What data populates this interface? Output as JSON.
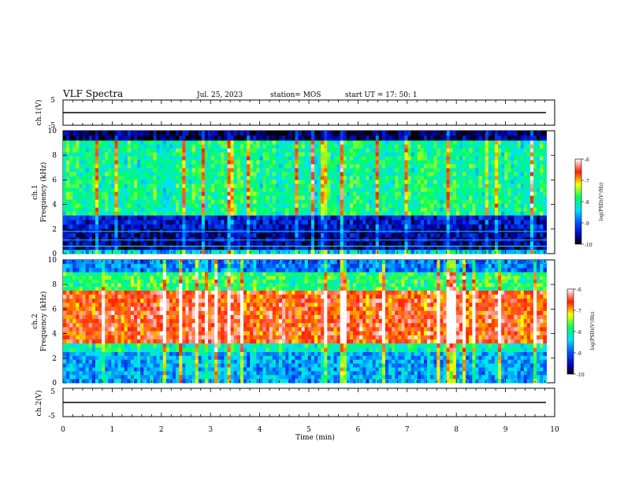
{
  "header": {
    "title": "VLF Spectra",
    "date": "Jul. 25, 2023",
    "station": "station= MOS",
    "start": "start  UT =   17: 50: 1"
  },
  "chart_data": [
    {
      "type": "line",
      "ylabel": "ch.1(V)",
      "yticks": [
        "5",
        "-5"
      ],
      "ylim": [
        -5,
        5
      ],
      "xlim": [
        0,
        10
      ],
      "series": [
        {
          "values": [
            0,
            0
          ]
        }
      ]
    },
    {
      "type": "heatmap",
      "ylabel_1": "ch.1",
      "ylabel_2": "Frequency (kHz)",
      "yticks": [
        "10",
        "8",
        "6",
        "4",
        "2",
        "0"
      ],
      "ylim": [
        0,
        10
      ],
      "xlim": [
        0,
        10
      ],
      "data_until_min": 9.83,
      "colorbar": {
        "label": "log(PSD)(V²/Hz)",
        "ticks": [
          "-6",
          "-7",
          "-8",
          "-9",
          "-10"
        ],
        "range": [
          -10,
          -6
        ]
      },
      "bands": [
        {
          "f_low": 9.2,
          "f_high": 10.0,
          "level": 0.05
        },
        {
          "f_low": 3.1,
          "f_high": 9.2,
          "level": 0.5
        },
        {
          "f_low": 2.0,
          "f_high": 3.1,
          "level": 0.15
        },
        {
          "f_low": 0.3,
          "f_high": 2.0,
          "level": 0.1
        },
        {
          "f_low": 0.0,
          "f_high": 0.3,
          "level": 0.4
        }
      ]
    },
    {
      "type": "heatmap",
      "ylabel_1": "ch.2",
      "ylabel_2": "Frequency (kHz)",
      "yticks": [
        "10",
        "8",
        "6",
        "4",
        "2",
        "0"
      ],
      "ylim": [
        0,
        10
      ],
      "xlim": [
        0,
        10
      ],
      "data_until_min": 9.83,
      "colorbar": {
        "label": "log(PSD)(V²/Hz)",
        "ticks": [
          "-6",
          "-7",
          "-8",
          "-9",
          "-10"
        ],
        "range": [
          -10,
          -6
        ]
      },
      "bands": [
        {
          "f_low": 9.0,
          "f_high": 10.0,
          "level": 0.3
        },
        {
          "f_low": 7.5,
          "f_high": 9.0,
          "level": 0.55
        },
        {
          "f_low": 3.2,
          "f_high": 7.5,
          "level": 0.85
        },
        {
          "f_low": 2.5,
          "f_high": 3.2,
          "level": 0.5
        },
        {
          "f_low": 0.0,
          "f_high": 2.5,
          "level": 0.35
        }
      ]
    },
    {
      "type": "line",
      "ylabel": "ch.2(V)",
      "yticks": [
        "5",
        "-5"
      ],
      "ylim": [
        -5,
        5
      ],
      "xlim": [
        0,
        10
      ],
      "xlabel": "Time (min)",
      "xticks": [
        "0",
        "1",
        "2",
        "3",
        "4",
        "5",
        "6",
        "7",
        "8",
        "9",
        "10"
      ],
      "series": [
        {
          "values": [
            0,
            0
          ]
        }
      ]
    }
  ]
}
